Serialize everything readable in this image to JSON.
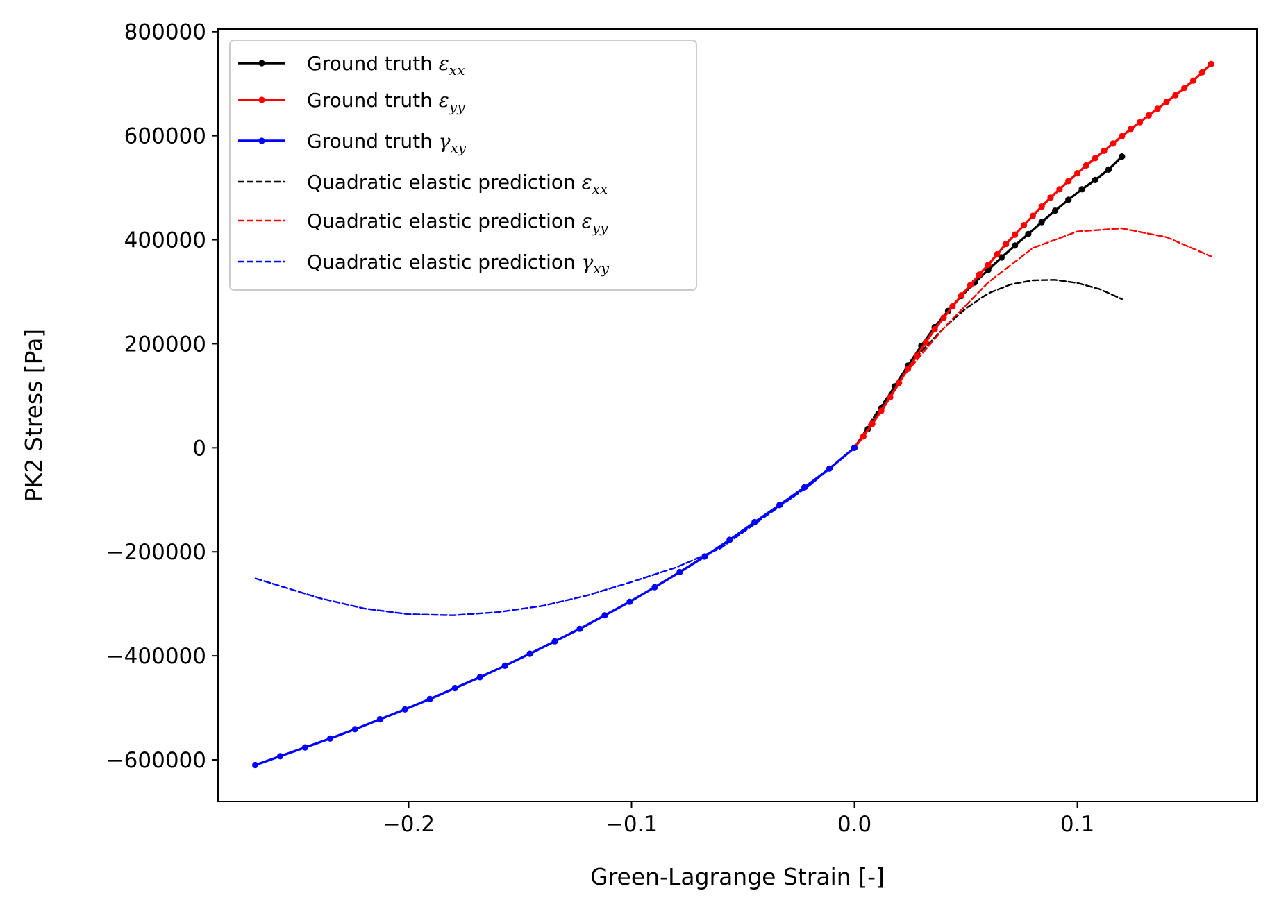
{
  "chart_data": {
    "type": "line",
    "xlabel": "Green-Lagrange Strain [-]",
    "ylabel": "PK2 Stress [Pa]",
    "xlim": [
      -0.2855,
      0.1805
    ],
    "ylim": [
      -680000,
      805000
    ],
    "xticks": [
      -0.2,
      -0.1,
      0.0,
      0.1
    ],
    "xtick_labels": [
      "−0.2",
      "−0.1",
      "0.0",
      "0.1"
    ],
    "yticks": [
      -600000,
      -400000,
      -200000,
      0,
      200000,
      400000,
      600000,
      800000
    ],
    "ytick_labels": [
      "−600000",
      "−400000",
      "−200000",
      "0",
      "200000",
      "400000",
      "600000",
      "800000"
    ],
    "grid": false,
    "legend_position": "top-left",
    "series": [
      {
        "name": "Ground truth",
        "subscript_symbol": "ε",
        "subscript": "xx",
        "color": "#000000",
        "style": "solid-markers",
        "x": [
          0.0,
          0.006,
          0.012,
          0.018,
          0.024,
          0.03,
          0.036,
          0.042,
          0.048,
          0.054,
          0.06,
          0.066,
          0.072,
          0.078,
          0.084,
          0.09,
          0.096,
          0.102,
          0.108,
          0.114,
          0.12
        ],
        "y": [
          0,
          36000,
          76000,
          118000,
          158000,
          196000,
          232000,
          263000,
          292000,
          318000,
          342000,
          366000,
          389000,
          411000,
          434000,
          456000,
          477000,
          497000,
          515000,
          535000,
          560000
        ]
      },
      {
        "name": "Ground truth",
        "subscript_symbol": "ε",
        "subscript": "yy",
        "color": "#ff0000",
        "style": "solid-markers",
        "x": [
          0.0,
          0.004,
          0.008,
          0.012,
          0.016,
          0.02,
          0.024,
          0.028,
          0.032,
          0.036,
          0.04,
          0.044,
          0.048,
          0.052,
          0.056,
          0.06,
          0.064,
          0.068,
          0.072,
          0.076,
          0.08,
          0.084,
          0.088,
          0.092,
          0.096,
          0.1,
          0.104,
          0.108,
          0.112,
          0.116,
          0.12,
          0.124,
          0.128,
          0.132,
          0.136,
          0.14,
          0.144,
          0.148,
          0.152,
          0.156,
          0.16
        ],
        "y": [
          0,
          22000,
          46000,
          71000,
          97000,
          125000,
          152000,
          177000,
          203000,
          228000,
          250000,
          272000,
          293000,
          313000,
          333000,
          352000,
          372000,
          392000,
          410000,
          428000,
          446000,
          464000,
          481000,
          497000,
          513000,
          528000,
          543000,
          557000,
          571000,
          585000,
          599000,
          613000,
          626000,
          639000,
          652000,
          665000,
          678000,
          692000,
          706000,
          722000,
          738000
        ]
      },
      {
        "name": "Ground truth",
        "subscript_symbol": "γ",
        "subscript": "xy",
        "color": "#0000ff",
        "style": "solid-markers",
        "x": [
          0.0,
          -0.0112,
          -0.0224,
          -0.0336,
          -0.0448,
          -0.056,
          -0.0672,
          -0.0784,
          -0.0896,
          -0.1008,
          -0.112,
          -0.1232,
          -0.1344,
          -0.1456,
          -0.1568,
          -0.168,
          -0.1792,
          -0.1904,
          -0.2016,
          -0.2128,
          -0.224,
          -0.2352,
          -0.2464,
          -0.2576,
          -0.2688
        ],
        "y": [
          0,
          -40000,
          -76000,
          -110000,
          -143000,
          -177000,
          -209000,
          -239000,
          -268000,
          -296000,
          -322000,
          -348000,
          -372000,
          -396000,
          -419000,
          -441000,
          -462000,
          -483000,
          -503000,
          -522000,
          -541000,
          -559000,
          -576000,
          -593000,
          -610000
        ]
      },
      {
        "name": "Quadratic elastic prediction",
        "subscript_symbol": "ε",
        "subscript": "xx",
        "color": "#000000",
        "style": "dashed",
        "x": [
          0.0,
          0.01,
          0.02,
          0.03,
          0.04,
          0.05,
          0.06,
          0.07,
          0.08,
          0.09,
          0.1,
          0.11,
          0.12
        ],
        "y": [
          0,
          68000,
          130000,
          185000,
          230000,
          268000,
          297000,
          314000,
          322000,
          323000,
          317000,
          305000,
          286000
        ]
      },
      {
        "name": "Quadratic elastic prediction",
        "subscript_symbol": "ε",
        "subscript": "yy",
        "color": "#ff0000",
        "style": "dashed",
        "x": [
          0.0,
          0.02,
          0.04,
          0.06,
          0.08,
          0.1,
          0.12,
          0.14,
          0.16
        ],
        "y": [
          0,
          128000,
          230000,
          318000,
          384000,
          416000,
          422000,
          405000,
          368000
        ]
      },
      {
        "name": "Quadratic elastic prediction",
        "subscript_symbol": "γ",
        "subscript": "xy",
        "color": "#0000ff",
        "style": "dashed",
        "x": [
          0.0,
          -0.02,
          -0.04,
          -0.06,
          -0.08,
          -0.1,
          -0.12,
          -0.14,
          -0.16,
          -0.18,
          -0.2,
          -0.22,
          -0.24,
          -0.2688
        ],
        "y": [
          0,
          -72000,
          -132000,
          -193000,
          -230000,
          -258000,
          -284000,
          -304000,
          -316000,
          -322000,
          -320000,
          -309000,
          -289000,
          -251000
        ]
      }
    ]
  }
}
